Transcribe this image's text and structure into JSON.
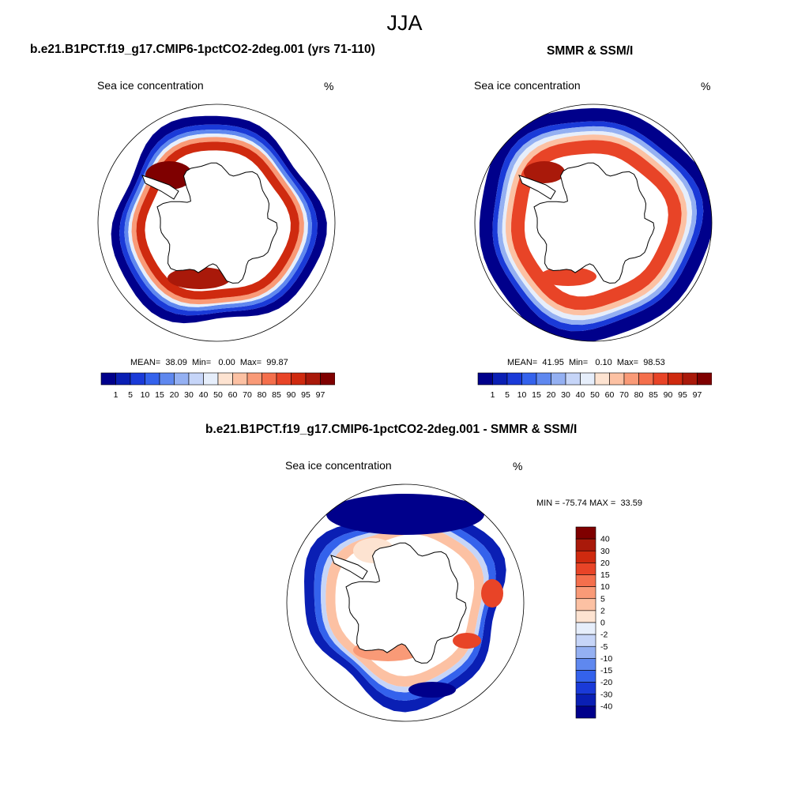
{
  "figure": {
    "title": "JJA",
    "panel_left_title": "b.e21.B1PCT.f19_g17.CMIP6-1pctCO2-2deg.001 (yrs 71-110)",
    "panel_right_title": "SMMR & SSM/I",
    "panel_diff_title": "b.e21.B1PCT.f19_g17.CMIP6-1pctCO2-2deg.001 - SMMR & SSM/I"
  },
  "colors": {
    "conc_palette": [
      "#00008b",
      "#0a1fb4",
      "#1a3ad8",
      "#3462ec",
      "#5f88ef",
      "#94b0f2",
      "#c6d5f8",
      "#e6eefb",
      "#fde3d1",
      "#fcc1a3",
      "#f99a77",
      "#f46f4c",
      "#e84427",
      "#cf2a0f",
      "#a9190a",
      "#7f0000"
    ],
    "diff_palette": [
      "#00008b",
      "#0a1fb4",
      "#1a3ad8",
      "#3462ec",
      "#5f88ef",
      "#94b0f2",
      "#c6d5f8",
      "#e6eefb",
      "#fde3d1",
      "#fcc1a3",
      "#f99a77",
      "#f46f4c",
      "#e84427",
      "#cf2a0f",
      "#a9190a",
      "#7f0000"
    ]
  },
  "chart_data": [
    {
      "type": "heatmap",
      "projection": "south-polar-stereographic",
      "title": "b.e21.B1PCT.f19_g17.CMIP6-1pctCO2-2deg.001 (yrs 71-110)",
      "variable": "Sea ice concentration",
      "units": "%",
      "stats": {
        "mean_label": "MEAN=",
        "mean": "38.09",
        "min_label": "Min=",
        "min": "0.00",
        "max_label": "Max=",
        "max": "99.87"
      },
      "colorbar": {
        "orientation": "horizontal",
        "levels": [
          "1",
          "5",
          "10",
          "15",
          "20",
          "30",
          "40",
          "50",
          "60",
          "70",
          "80",
          "85",
          "90",
          "95",
          "97"
        ]
      }
    },
    {
      "type": "heatmap",
      "projection": "south-polar-stereographic",
      "title": "SMMR & SSM/I",
      "variable": "Sea ice concentration",
      "units": "%",
      "stats": {
        "mean_label": "MEAN=",
        "mean": "41.95",
        "min_label": "Min=",
        "min": "0.10",
        "max_label": "Max=",
        "max": "98.53"
      },
      "colorbar": {
        "orientation": "horizontal",
        "levels": [
          "1",
          "5",
          "10",
          "15",
          "20",
          "30",
          "40",
          "50",
          "60",
          "70",
          "80",
          "85",
          "90",
          "95",
          "97"
        ]
      }
    },
    {
      "type": "heatmap",
      "projection": "south-polar-stereographic",
      "title": "b.e21.B1PCT.f19_g17.CMIP6-1pctCO2-2deg.001 - SMMR & SSM/I",
      "variable": "Sea ice concentration",
      "units": "%",
      "stats": {
        "min_label": "MIN =",
        "min": "-75.74",
        "max_label": "MAX =",
        "max": "33.59"
      },
      "colorbar": {
        "orientation": "vertical",
        "levels": [
          "40",
          "30",
          "20",
          "15",
          "10",
          "5",
          "2",
          "0",
          "-2",
          "-5",
          "-10",
          "-15",
          "-20",
          "-30",
          "-40"
        ]
      }
    }
  ]
}
